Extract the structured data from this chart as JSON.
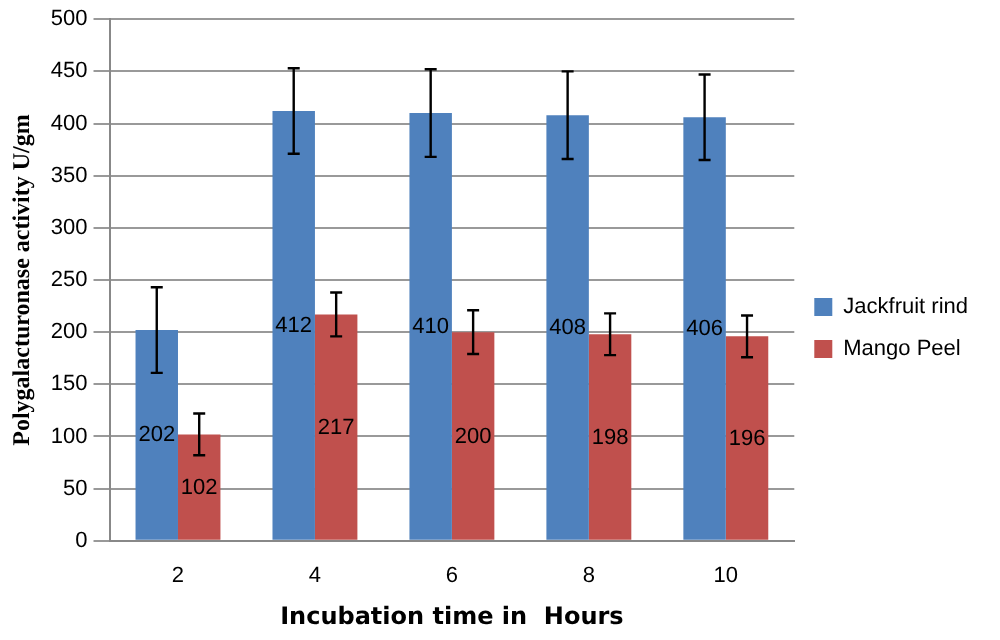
{
  "chart_data": {
    "type": "bar",
    "xlabel": "Incubation time in  Hours",
    "ylabel": "Polygalacturonase activity U/gm",
    "categories": [
      "2",
      "4",
      "6",
      "8",
      "10"
    ],
    "series": [
      {
        "name": "Jackfruit rind",
        "color": "#4f81bd",
        "values": [
          202,
          412,
          410,
          408,
          406
        ],
        "errors": [
          41,
          41,
          42,
          42,
          41
        ]
      },
      {
        "name": "Mango Peel",
        "color": "#c0504d",
        "values": [
          102,
          217,
          200,
          198,
          196
        ],
        "errors": [
          20,
          21,
          21,
          20,
          20
        ]
      }
    ],
    "ylim": [
      0,
      500
    ],
    "yticks": [
      0,
      50,
      100,
      150,
      200,
      250,
      300,
      350,
      400,
      450,
      500
    ],
    "grid": "y",
    "legend": "right",
    "data_labels": true
  }
}
